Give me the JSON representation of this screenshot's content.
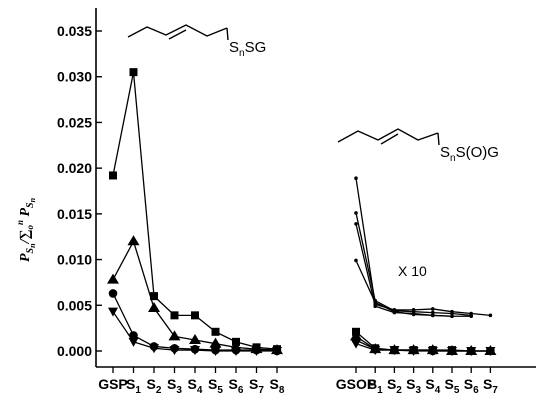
{
  "chart_data": {
    "type": "line",
    "ylabel": "P_{S_n}/∑_o^n P_{S_n}",
    "ylim": [
      0,
      0.035
    ],
    "yticks": [
      "0.000",
      "0.005",
      "0.010",
      "0.015",
      "0.020",
      "0.025",
      "0.030",
      "0.035"
    ],
    "yvalues": [
      0,
      0.005,
      0.01,
      0.015,
      0.02,
      0.025,
      0.03,
      0.035
    ],
    "groups": [
      {
        "structure_label": "SnSG",
        "categories": [
          "GSP",
          "S1",
          "S2",
          "S3",
          "S4",
          "S5",
          "S6",
          "S7",
          "S8"
        ],
        "series": [
          {
            "marker": "square",
            "values": [
              0.0192,
              0.0305,
              0.006,
              0.0039,
              0.0039,
              0.0021,
              0.001,
              0.0004,
              0.0002
            ]
          },
          {
            "marker": "triangle-up",
            "values": [
              0.0078,
              0.012,
              0.0047,
              0.0016,
              0.0012,
              0.0008,
              0.0004,
              0.0002,
              0.0001
            ]
          },
          {
            "marker": "circle",
            "values": [
              0.0063,
              0.0017,
              0.0005,
              0.0003,
              0.0002,
              0.0001,
              0.0001,
              0.0001,
              0.0
            ]
          },
          {
            "marker": "triangle-down",
            "values": [
              0.0043,
              0.001,
              0.0003,
              0.0001,
              0.0001,
              0.0,
              0.0,
              0.0,
              0.0
            ]
          }
        ]
      },
      {
        "structure_label": "SnS(O)G",
        "annotation": "X 10",
        "categories": [
          "GSOP",
          "S1",
          "S2",
          "S3",
          "S4",
          "S5",
          "S6",
          "S7"
        ],
        "series": [
          {
            "marker": "square",
            "values": [
              0.0021,
              0.0003,
              0.0001,
              0.0001,
              0.0001,
              0.0001,
              0.0,
              0.0
            ]
          },
          {
            "marker": "triangle-up",
            "values": [
              0.0016,
              0.0002,
              0.0001,
              0.0001,
              0.0001,
              0.0,
              0.0,
              0.0
            ]
          },
          {
            "marker": "circle",
            "values": [
              0.0012,
              0.0002,
              0.0001,
              0.0001,
              0.0,
              0.0,
              0.0,
              0.0
            ]
          },
          {
            "marker": "triangle-down",
            "values": [
              0.0008,
              0.0001,
              0.0001,
              0.0,
              0.0,
              0.0,
              0.0,
              0.0
            ]
          }
        ],
        "scaled_series": [
          {
            "marker": "dot",
            "values": [
              0.0189,
              0.0051,
              0.0045,
              0.0045,
              0.0046,
              0.0043,
              0.0041,
              0.0039
            ]
          },
          {
            "marker": "dot",
            "values": [
              0.0151,
              0.0055,
              0.0044,
              0.0043,
              0.0042,
              0.0041,
              0.0039
            ]
          },
          {
            "marker": "dot",
            "values": [
              0.0139,
              0.0049,
              0.0042,
              0.0041,
              0.0039,
              0.0038,
              0.0038
            ]
          },
          {
            "marker": "dot",
            "values": [
              0.0099,
              0.0053,
              0.0043,
              0.004,
              0.0039,
              0.0038
            ]
          }
        ]
      }
    ]
  }
}
